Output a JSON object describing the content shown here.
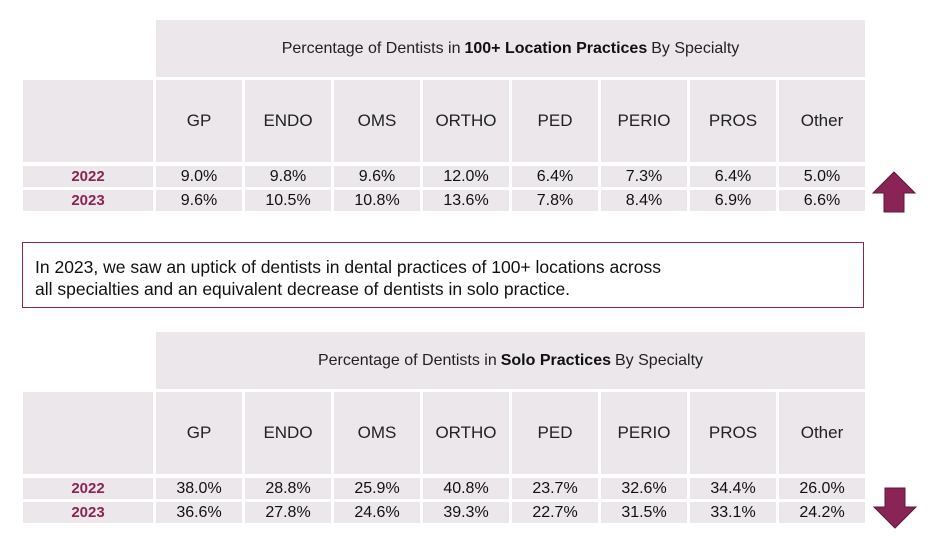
{
  "chart_data": [
    {
      "type": "table",
      "title": {
        "pre": "Percentage of Dentists in",
        "bold": "100+ Location Practices",
        "post": "By Specialty"
      },
      "columns": [
        "GP",
        "ENDO",
        "OMS",
        "ORTHO",
        "PED",
        "PERIO",
        "PROS",
        "Other"
      ],
      "rows": [
        {
          "year": "2022",
          "values": [
            "9.0%",
            "9.8%",
            "9.6%",
            "12.0%",
            "6.4%",
            "7.3%",
            "6.4%",
            "5.0%"
          ]
        },
        {
          "year": "2023",
          "values": [
            "9.6%",
            "10.5%",
            "10.8%",
            "13.6%",
            "7.8%",
            "8.4%",
            "6.9%",
            "6.6%"
          ]
        }
      ],
      "trend_icon": "arrow-up-icon"
    },
    {
      "type": "table",
      "title": {
        "pre": "Percentage of Dentists in",
        "bold": "Solo Practices",
        "post": "By Specialty"
      },
      "columns": [
        "GP",
        "ENDO",
        "OMS",
        "ORTHO",
        "PED",
        "PERIO",
        "PROS",
        "Other"
      ],
      "rows": [
        {
          "year": "2022",
          "values": [
            "38.0%",
            "28.8%",
            "25.9%",
            "40.8%",
            "23.7%",
            "32.6%",
            "34.4%",
            "26.0%"
          ]
        },
        {
          "year": "2023",
          "values": [
            "36.6%",
            "27.8%",
            "24.6%",
            "39.3%",
            "22.7%",
            "31.5%",
            "33.1%",
            "24.2%"
          ]
        }
      ],
      "trend_icon": "arrow-down-icon"
    }
  ],
  "callout": {
    "line1": "In 2023, we saw an uptick of dentists in dental practices of 100+ locations across",
    "line2": "all specialties and an equivalent decrease of dentists in solo practice."
  },
  "colors": {
    "header_bg": "#ece7ea",
    "year_text": "#8a2456",
    "arrow_fill": "#8a2456",
    "callout_border": "#8a2456"
  }
}
